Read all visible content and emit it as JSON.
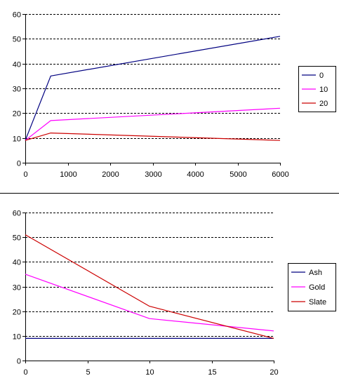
{
  "chart_data": [
    {
      "type": "line",
      "x": [
        0,
        600,
        6000
      ],
      "xlim": [
        0,
        6000
      ],
      "ylim": [
        0,
        60
      ],
      "xticks": [
        0,
        1000,
        2000,
        3000,
        4000,
        5000,
        6000
      ],
      "yticks": [
        0,
        10,
        20,
        30,
        40,
        50,
        60
      ],
      "grid": "horizontal dashed",
      "legend_position": "right",
      "series": [
        {
          "name": "0",
          "color": "#000080",
          "values": [
            9,
            35,
            51
          ]
        },
        {
          "name": "10",
          "color": "#ff00ff",
          "values": [
            9,
            17,
            22
          ]
        },
        {
          "name": "20",
          "color": "#cc0000",
          "values": [
            9,
            12,
            9
          ]
        }
      ]
    },
    {
      "type": "line",
      "x": [
        0,
        10,
        20
      ],
      "xlim": [
        0,
        20
      ],
      "ylim": [
        0,
        60
      ],
      "xticks": [
        0,
        5,
        10,
        15,
        20
      ],
      "yticks": [
        0,
        10,
        20,
        30,
        40,
        50,
        60
      ],
      "grid": "horizontal dashed",
      "legend_position": "right",
      "series": [
        {
          "name": "Ash",
          "color": "#000080",
          "values": [
            9,
            9,
            9
          ]
        },
        {
          "name": "Gold",
          "color": "#ff00ff",
          "values": [
            35,
            17,
            12
          ]
        },
        {
          "name": "Slate",
          "color": "#cc0000",
          "values": [
            51,
            22,
            9
          ]
        }
      ]
    }
  ]
}
